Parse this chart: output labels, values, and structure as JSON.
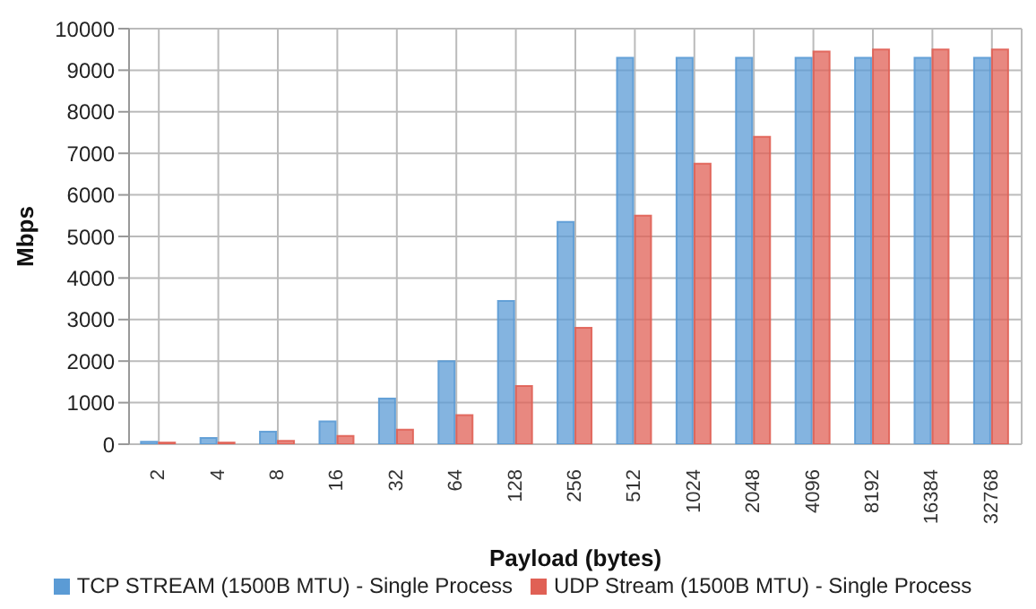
{
  "chart_data": {
    "type": "bar",
    "xlabel": "Payload (bytes)",
    "ylabel": "Mbps",
    "categories": [
      "2",
      "4",
      "8",
      "16",
      "32",
      "64",
      "128",
      "256",
      "512",
      "1024",
      "2048",
      "4096",
      "8192",
      "16384",
      "32768"
    ],
    "series": [
      {
        "name": "TCP STREAM (1500B MTU) - Single Process",
        "color": "#5b9bd5",
        "values": [
          60,
          150,
          300,
          550,
          1100,
          2000,
          3450,
          5350,
          9300,
          9300,
          9300,
          9300,
          9300,
          9300,
          9300
        ]
      },
      {
        "name": "UDP Stream (1500B MTU) - Single Process",
        "color": "#e06055",
        "values": [
          40,
          40,
          80,
          200,
          350,
          700,
          1400,
          2800,
          5500,
          6750,
          7400,
          9450,
          9500,
          9500,
          9500
        ]
      }
    ],
    "ylim": [
      0,
      10000
    ],
    "yticks": [
      0,
      1000,
      2000,
      3000,
      4000,
      5000,
      6000,
      7000,
      8000,
      9000,
      10000
    ],
    "grid": true,
    "legend": "bottom"
  }
}
